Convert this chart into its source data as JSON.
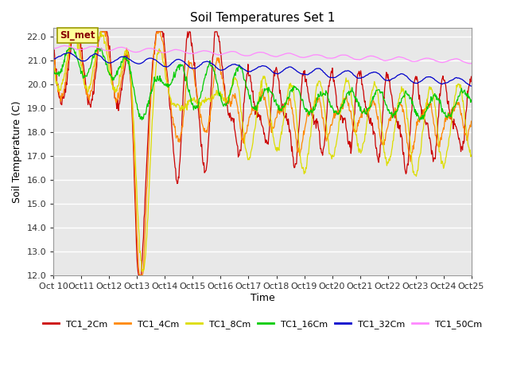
{
  "title": "Soil Temperatures Set 1",
  "ylabel": "Soil Temperature (C)",
  "xlabel": "Time",
  "annotation_text": "SI_met",
  "yticks": [
    12.0,
    13.0,
    14.0,
    15.0,
    16.0,
    17.0,
    18.0,
    19.0,
    20.0,
    21.0,
    22.0
  ],
  "ylim": [
    12.0,
    22.35
  ],
  "xtick_labels": [
    "Oct 10",
    "Oct 11",
    "Oct 12",
    "Oct 13",
    "Oct 14",
    "Oct 15",
    "Oct 16",
    "Oct 17",
    "Oct 18",
    "Oct 19",
    "Oct 20",
    "Oct 21",
    "Oct 22",
    "Oct 23",
    "Oct 24",
    "Oct 25"
  ],
  "series_colors": {
    "TC1_2Cm": "#cc0000",
    "TC1_4Cm": "#ff8800",
    "TC1_8Cm": "#dddd00",
    "TC1_16Cm": "#00cc00",
    "TC1_32Cm": "#0000cc",
    "TC1_50Cm": "#ff88ff"
  },
  "series_names": [
    "TC1_2Cm",
    "TC1_4Cm",
    "TC1_8Cm",
    "TC1_16Cm",
    "TC1_32Cm",
    "TC1_50Cm"
  ],
  "legend_colors": [
    "#cc0000",
    "#ff8800",
    "#dddd00",
    "#00cc00",
    "#0000cc",
    "#ff88ff"
  ],
  "fig_bg_color": "#ffffff",
  "plot_bg_color": "#e8e8e8",
  "grid_color": "#ffffff",
  "annotation_bg": "#ffff99",
  "annotation_border": "#999900",
  "title_fontsize": 11,
  "axis_fontsize": 8,
  "label_fontsize": 9
}
